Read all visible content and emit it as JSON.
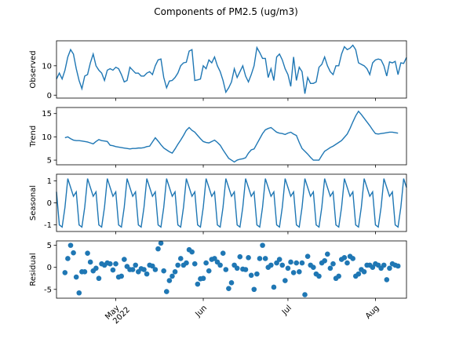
{
  "chart_data": {
    "title": "Components of PM2.5 (ug/m3)",
    "x": [
      100,
      101,
      102,
      103,
      104,
      105,
      106,
      107,
      108,
      109,
      110,
      111,
      112,
      113,
      114,
      115,
      116,
      117,
      118,
      119,
      120,
      121,
      122,
      123,
      124,
      125,
      126,
      127,
      128,
      129,
      130,
      131,
      132,
      133,
      134,
      135,
      136,
      137,
      138,
      139,
      140,
      141,
      142,
      143,
      144,
      145,
      146,
      147,
      148,
      149,
      150,
      151,
      152,
      153,
      154,
      155,
      156,
      157,
      158,
      159,
      160,
      161,
      162,
      163,
      164,
      165,
      166,
      167,
      168,
      169,
      170,
      171,
      172,
      173,
      174,
      175,
      176,
      177,
      178,
      179,
      180,
      181,
      182,
      183,
      184,
      185,
      186,
      187,
      188,
      189,
      190,
      191,
      192,
      193,
      194,
      195,
      196,
      197,
      198,
      199,
      200,
      201,
      202,
      203,
      204,
      205,
      206,
      207,
      208,
      209,
      210,
      211,
      212,
      213,
      214,
      215,
      216,
      217,
      218,
      219,
      220,
      221,
      222,
      223,
      224
    ],
    "xlim": [
      100,
      224
    ],
    "xticks": [
      {
        "value": 121,
        "label": "May\n2022"
      },
      {
        "value": 152,
        "label": "Jun"
      },
      {
        "value": 182,
        "label": "Jul"
      },
      {
        "value": 213,
        "label": "Aug"
      }
    ],
    "panels": [
      {
        "type": "line",
        "ylabel": "Observed",
        "color": "#1f77b4",
        "ylim": [
          -1,
          18.5
        ],
        "yticks": [
          0,
          10
        ],
        "values": [
          5.5,
          7.5,
          5.5,
          8.5,
          13,
          15.5,
          14,
          9,
          5,
          2.2,
          6.5,
          7,
          11,
          14,
          10,
          8.5,
          7.5,
          5,
          8.5,
          9,
          8.5,
          9.5,
          9,
          7,
          4.5,
          5,
          9.5,
          8.5,
          7.5,
          7.5,
          6.5,
          6.5,
          7.5,
          8,
          7,
          10,
          12,
          12.3,
          6,
          2.5,
          4.8,
          5,
          6,
          7.5,
          10,
          11,
          11.2,
          15,
          15.5,
          5,
          5.2,
          5.5,
          10,
          9,
          12,
          11,
          13,
          10,
          8,
          5,
          1,
          2.5,
          4.5,
          9,
          6,
          8,
          10,
          6.5,
          4.5,
          7,
          10,
          16.2,
          14.5,
          12.5,
          12.5,
          6,
          9,
          5,
          13,
          14,
          12,
          9,
          7,
          3,
          13,
          5,
          9.5,
          8,
          0.5,
          6,
          4,
          4,
          4.5,
          9.5,
          10.5,
          13,
          10,
          8,
          7,
          10,
          10,
          14,
          16.5,
          15.5,
          16,
          17,
          15.5,
          11,
          10.5,
          10,
          9,
          7,
          11,
          12,
          12.3,
          12,
          10,
          6.5,
          11.3,
          11,
          11.5,
          7,
          11,
          10.8,
          12.8
        ]
      },
      {
        "type": "line",
        "ylabel": "Trend",
        "color": "#1f77b4",
        "ylim": [
          4,
          16.3
        ],
        "yticks": [
          5,
          10,
          15
        ],
        "values": [
          null,
          null,
          null,
          9.8,
          10.0,
          9.6,
          9.3,
          9.2,
          9.2,
          9.1,
          9.0,
          8.9,
          8.7,
          8.5,
          9.0,
          9.4,
          9.2,
          9.1,
          9.0,
          8.2,
          8.1,
          7.9,
          7.8,
          7.7,
          7.6,
          7.5,
          7.4,
          7.5,
          7.5,
          7.6,
          7.6,
          7.7,
          7.9,
          8.0,
          8.9,
          9.8,
          9.1,
          8.3,
          7.6,
          7.2,
          6.8,
          6.5,
          7.4,
          8.4,
          9.3,
          10.3,
          11.4,
          12.0,
          11.4,
          11.0,
          10.3,
          9.6,
          9.0,
          8.8,
          8.7,
          9.0,
          9.3,
          8.8,
          8.2,
          7.2,
          6.3,
          5.4,
          5.0,
          4.6,
          5.0,
          5.2,
          5.3,
          5.5,
          6.5,
          7.2,
          7.4,
          8.5,
          9.6,
          10.7,
          11.5,
          11.8,
          12.0,
          11.5,
          11.0,
          10.8,
          10.7,
          10.5,
          10.8,
          11.0,
          10.6,
          10.3,
          8.8,
          7.5,
          6.9,
          6.3,
          5.6,
          5.0,
          5.0,
          5.0,
          6.0,
          6.9,
          7.3,
          7.7,
          8.0,
          8.4,
          8.8,
          9.2,
          9.9,
          10.6,
          11.8,
          13.2,
          14.5,
          15.5,
          14.8,
          14.0,
          13.2,
          12.4,
          11.5,
          10.7,
          10.6,
          10.7,
          10.8,
          10.9,
          11.0,
          11.0,
          10.9,
          10.8,
          null,
          null,
          null
        ]
      },
      {
        "type": "line",
        "ylabel": "Seasonal",
        "color": "#1f77b4",
        "ylim": [
          -1.3,
          1.3
        ],
        "yticks": [
          -1,
          0,
          1
        ],
        "values": [
          0.5,
          -1.0,
          -1.1,
          -0.2,
          1.1,
          0.7,
          0.3,
          0.5,
          -1.0,
          -1.1,
          -0.2,
          1.1,
          0.7,
          0.3,
          0.5,
          -1.0,
          -1.1,
          -0.2,
          1.1,
          0.7,
          0.3,
          0.5,
          -1.0,
          -1.1,
          -0.2,
          1.1,
          0.7,
          0.3,
          0.5,
          -1.0,
          -1.1,
          -0.2,
          1.1,
          0.7,
          0.3,
          0.5,
          -1.0,
          -1.1,
          -0.2,
          1.1,
          0.7,
          0.3,
          0.5,
          -1.0,
          -1.1,
          -0.2,
          1.1,
          0.7,
          0.3,
          0.5,
          -1.0,
          -1.1,
          -0.2,
          1.1,
          0.7,
          0.3,
          0.5,
          -1.0,
          -1.1,
          -0.2,
          1.1,
          0.7,
          0.3,
          0.5,
          -1.0,
          -1.1,
          -0.2,
          1.1,
          0.7,
          0.3,
          0.5,
          -1.0,
          -1.1,
          -0.2,
          1.1,
          0.7,
          0.3,
          0.5,
          -1.0,
          -1.1,
          -0.2,
          1.1,
          0.7,
          0.3,
          0.5,
          -1.0,
          -1.1,
          -0.2,
          1.1,
          0.7,
          0.3,
          0.5,
          -1.0,
          -1.1,
          -0.2,
          1.1,
          0.7,
          0.3,
          0.5,
          -1.0,
          -1.1,
          -0.2,
          1.1,
          0.7,
          0.3,
          0.5,
          -1.0,
          -1.1,
          -0.2,
          1.1,
          0.7,
          0.3,
          0.5,
          -1.0,
          -1.1,
          -0.2,
          1.1,
          0.7,
          0.3,
          0.5,
          -1.0,
          -1.1,
          -0.2,
          1.1,
          0.7
        ]
      },
      {
        "type": "scatter",
        "ylabel": "Residual",
        "color": "#1f77b4",
        "ylim": [
          -7,
          6
        ],
        "yticks": [
          -5,
          0,
          5
        ],
        "values": [
          null,
          null,
          null,
          -1.2,
          2.0,
          5.0,
          3.3,
          -2.2,
          -5.8,
          -1.0,
          -1.0,
          3.2,
          1.2,
          -0.8,
          -0.2,
          -2.5,
          0.8,
          0.5,
          1.0,
          0.8,
          -0.6,
          0.8,
          -2.2,
          -2.0,
          1.8,
          0.2,
          -0.5,
          -0.5,
          0.5,
          -1.0,
          -0.3,
          -0.5,
          -1.5,
          0.5,
          0.3,
          -0.5,
          4.2,
          5.5,
          -0.8,
          -5.5,
          -3.0,
          -2.0,
          -1.0,
          0.5,
          2.0,
          0.5,
          1.0,
          4.0,
          3.5,
          0.8,
          -3.8,
          -2.6,
          -2.5,
          1.0,
          -0.8,
          1.8,
          2.0,
          1.2,
          0.5,
          3.2,
          -0.5,
          -4.8,
          -3.5,
          0.5,
          -0.2,
          2.4,
          -0.4,
          -0.5,
          2.2,
          -1.8,
          -5.0,
          -1.5,
          2.0,
          5.0,
          2.0,
          0.0,
          0.5,
          -4.5,
          1.0,
          1.8,
          0.5,
          -3.0,
          -0.2,
          1.2,
          -1.2,
          1.0,
          -1.0,
          1.0,
          -6.2,
          2.5,
          0.5,
          0.0,
          -1.5,
          -2.0,
          1.0,
          1.5,
          3.0,
          -0.2,
          0.8,
          -2.5,
          -2.0,
          1.8,
          2.2,
          1.0,
          2.5,
          2.0,
          -2.0,
          -1.5,
          -0.5,
          -1.0,
          0.5,
          0.5,
          0.0,
          0.8,
          0.5,
          -0.2,
          0.5,
          -2.8,
          -0.2,
          0.8,
          0.5,
          0.3,
          null,
          null,
          null
        ]
      }
    ]
  }
}
